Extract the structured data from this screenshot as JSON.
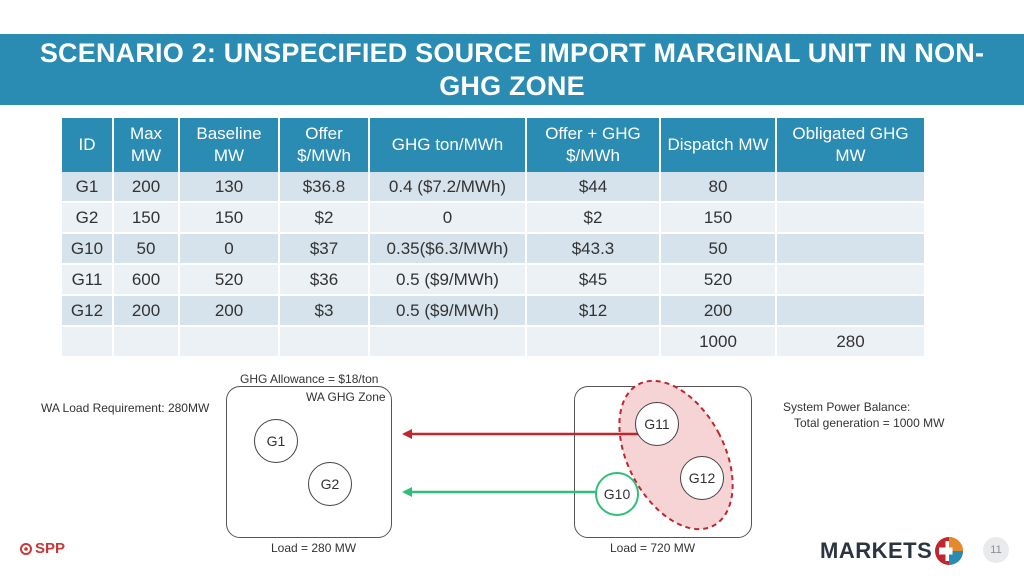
{
  "title": "SCENARIO 2: UNSPECIFIED SOURCE IMPORT MARGINAL UNIT IN NON-GHG ZONE",
  "table": {
    "headers": [
      "ID",
      "Max MW",
      "Baseline MW",
      "Offer $/MWh",
      "GHG ton/MWh",
      "Offer + GHG $/MWh",
      "Dispatch MW",
      "Obligated GHG MW"
    ],
    "rows": [
      [
        "G1",
        "200",
        "130",
        "$36.8",
        "0.4 ($7.2/MWh)",
        "$44",
        "80",
        ""
      ],
      [
        "G2",
        "150",
        "150",
        "$2",
        "0",
        "$2",
        "150",
        ""
      ],
      [
        "G10",
        "50",
        "0",
        "$37",
        "0.35($6.3/MWh)",
        "$43.3",
        "50",
        ""
      ],
      [
        "G11",
        "600",
        "520",
        "$36",
        "0.5 ($9/MWh)",
        "$45",
        "520",
        ""
      ],
      [
        "G12",
        "200",
        "200",
        "$3",
        "0.5 ($9/MWh)",
        "$12",
        "200",
        ""
      ],
      [
        "",
        "",
        "",
        "",
        "",
        "",
        "1000",
        "280"
      ]
    ]
  },
  "diagram": {
    "ghg_allowance": "GHG Allowance = $18/ton",
    "wa_zone_label": "WA GHG Zone",
    "wa_load_requirement": "WA Load Requirement: 280MW",
    "system_balance_title": "System Power Balance:",
    "system_balance_value": "Total generation = 1000 MW",
    "load_left": "Load = 280 MW",
    "load_right": "Load = 720 MW",
    "generators": {
      "g1": "G1",
      "g2": "G2",
      "g10": "G10",
      "g11": "G11",
      "g12": "G12"
    },
    "colors": {
      "import_arrow": "#c0272d",
      "export_arrow": "#2fbf79",
      "marginal_group_fill": "#f6d3d4",
      "marginal_group_border": "#c0272d"
    }
  },
  "footer": {
    "left_logo": "SPP",
    "right_logo": "MARKETS",
    "page_number": "11"
  }
}
